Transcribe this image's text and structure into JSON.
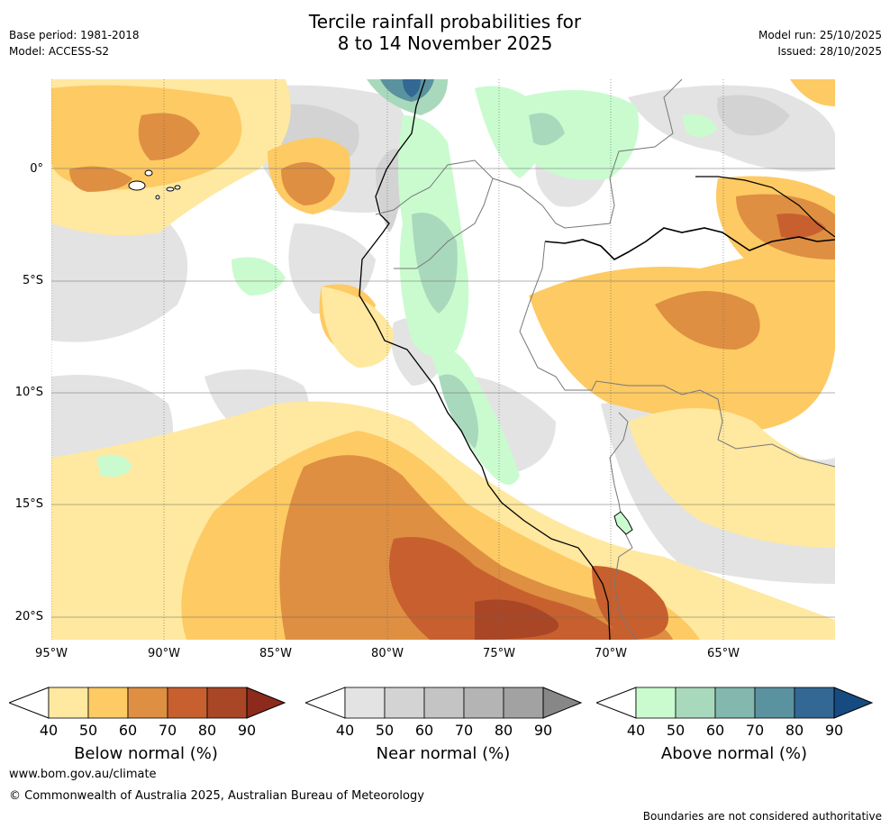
{
  "title": {
    "line1": "Tercile rainfall probabilities for",
    "line2": "8 to 14 November 2025"
  },
  "meta_left": {
    "base_period": "Base period: 1981-2018",
    "model": "Model: ACCESS-S2"
  },
  "meta_right": {
    "model_run": "Model run: 25/10/2025",
    "issued": "Issued: 28/10/2025"
  },
  "map": {
    "lat_ticks": [
      "0°",
      "5°S",
      "10°S",
      "15°S",
      "20°S"
    ],
    "lon_ticks": [
      "95°W",
      "90°W",
      "85°W",
      "80°W",
      "75°W",
      "70°W",
      "65°W"
    ]
  },
  "colorbars": [
    {
      "label": "Below normal (%)",
      "ticks": [
        "40",
        "50",
        "60",
        "70",
        "80",
        "90"
      ],
      "colors": [
        "#ffe8a0",
        "#fdca63",
        "#de8f42",
        "#c7602e",
        "#a84626",
        "#8c2a1c"
      ]
    },
    {
      "label": "Near normal (%)",
      "ticks": [
        "40",
        "50",
        "60",
        "70",
        "80",
        "90"
      ],
      "colors": [
        "#e3e3e3",
        "#d3d3d3",
        "#c4c4c4",
        "#b4b4b4",
        "#a2a2a2",
        "#878787"
      ]
    },
    {
      "label": "Above normal (%)",
      "ticks": [
        "40",
        "50",
        "60",
        "70",
        "80",
        "90"
      ],
      "colors": [
        "#c9fbcf",
        "#a9d9bc",
        "#82b8ae",
        "#5b929f",
        "#336894",
        "#164b82"
      ]
    }
  ],
  "footer": {
    "website": "www.bom.gov.au/climate",
    "copyright": "© Commonwealth of Australia 2025, Australian Bureau of Meteorology",
    "disclaimer": "Boundaries are not considered authoritative"
  }
}
